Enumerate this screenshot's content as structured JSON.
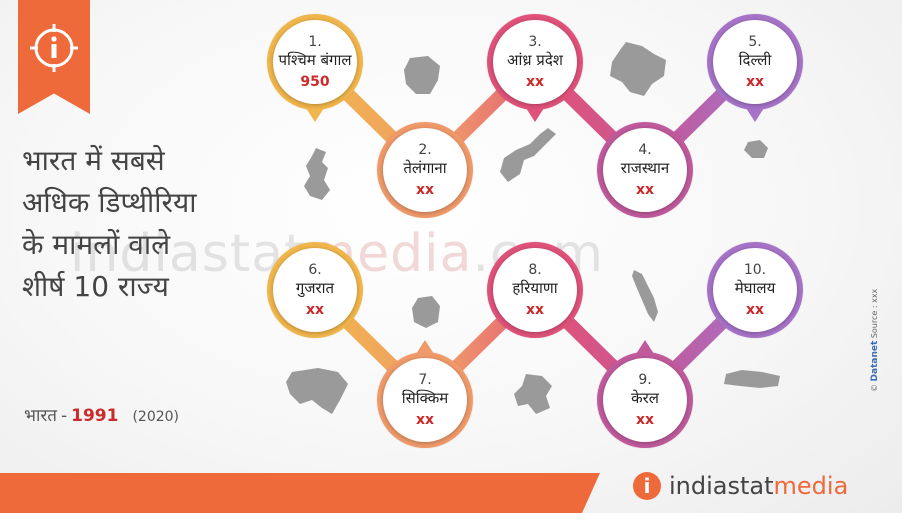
{
  "title_lines": [
    "भारत में सबसे",
    "अधिक डिप्थीरिया",
    "के मामलों वाले",
    "शीर्ष 10 राज्य"
  ],
  "footer": {
    "country": "भारत",
    "dash": "-",
    "total": "1991",
    "year": "(2020)"
  },
  "watermark": {
    "part1": "indiastat",
    "part2": "media",
    "part3": ".com"
  },
  "states": [
    {
      "num": "1.",
      "name": "पश्चिम बंगाल",
      "value": "950",
      "color": "#f1b64b"
    },
    {
      "num": "2.",
      "name": "तेलंगाना",
      "value": "xx",
      "color": "#f09a6a"
    },
    {
      "num": "3.",
      "name": "आंध्र प्रदेश",
      "value": "xx",
      "color": "#e0527a"
    },
    {
      "num": "4.",
      "name": "राजस्थान",
      "value": "xx",
      "color": "#c05a9c"
    },
    {
      "num": "5.",
      "name": "दिल्ली",
      "value": "xx",
      "color": "#a773c8"
    },
    {
      "num": "6.",
      "name": "गुजरात",
      "value": "xx",
      "color": "#f1b64b"
    },
    {
      "num": "7.",
      "name": "सिक्किम",
      "value": "xx",
      "color": "#f09a6a"
    },
    {
      "num": "8.",
      "name": "हरियाणा",
      "value": "xx",
      "color": "#e0527a"
    },
    {
      "num": "9.",
      "name": "केरल",
      "value": "xx",
      "color": "#c05a9c"
    },
    {
      "num": "10.",
      "name": "मेघालय",
      "value": "xx",
      "color": "#a773c8"
    }
  ],
  "brand": {
    "name_part1": "indiastat",
    "name_part2": "media"
  },
  "credit": {
    "copyright": "©",
    "company": "Datanet",
    "source": "Source : xxx"
  },
  "colors": {
    "accent": "#ee6a3a",
    "value_red": "#cc2a2a",
    "map_gray": "#9a9a9a"
  }
}
